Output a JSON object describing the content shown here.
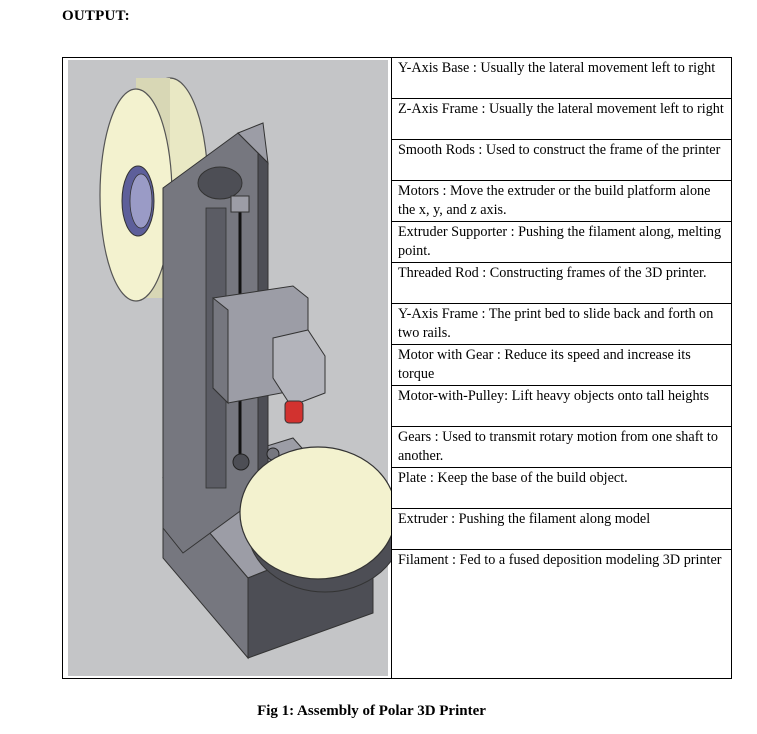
{
  "heading": "OUTPUT:",
  "components": [
    {
      "text": "Y-Axis Base : Usually the lateral movement left to right"
    },
    {
      "text": "Z-Axis Frame : Usually the lateral movement left to right"
    },
    {
      "text": "Smooth Rods : Used to construct the frame of the printer"
    },
    {
      "text": "Motors : Move the extruder or the build platform  alone the x, y, and z axis."
    },
    {
      "text": "Extruder Supporter : Pushing the filament along, melting point."
    },
    {
      "text": "Threaded Rod : Constructing frames of the 3D printer."
    },
    {
      "text": "Y-Axis Frame : The print bed to slide back and forth on two rails."
    },
    {
      "text": "Motor with Gear : Reduce its speed and increase its torque"
    },
    {
      "text": "Motor-with-Pulley: Lift heavy objects onto tall heights"
    },
    {
      "text": "Gears : Used to transmit rotary motion from one shaft to another."
    },
    {
      "text": "Plate : Keep the base of the build object."
    },
    {
      "text": "Extruder  : Pushing the filament along model"
    },
    {
      "text": "Filament : Fed to a fused deposition modeling 3D printer"
    }
  ],
  "figure": {
    "caption": "Fig 1: Assembly of Polar 3D Printer",
    "colors": {
      "background": "#c4c5c7",
      "frame": "#76777f",
      "frame_light": "#9c9da6",
      "frame_dark": "#4d4e55",
      "spool": "#f3f2cf",
      "extruder_tip": "#d2322f"
    }
  }
}
